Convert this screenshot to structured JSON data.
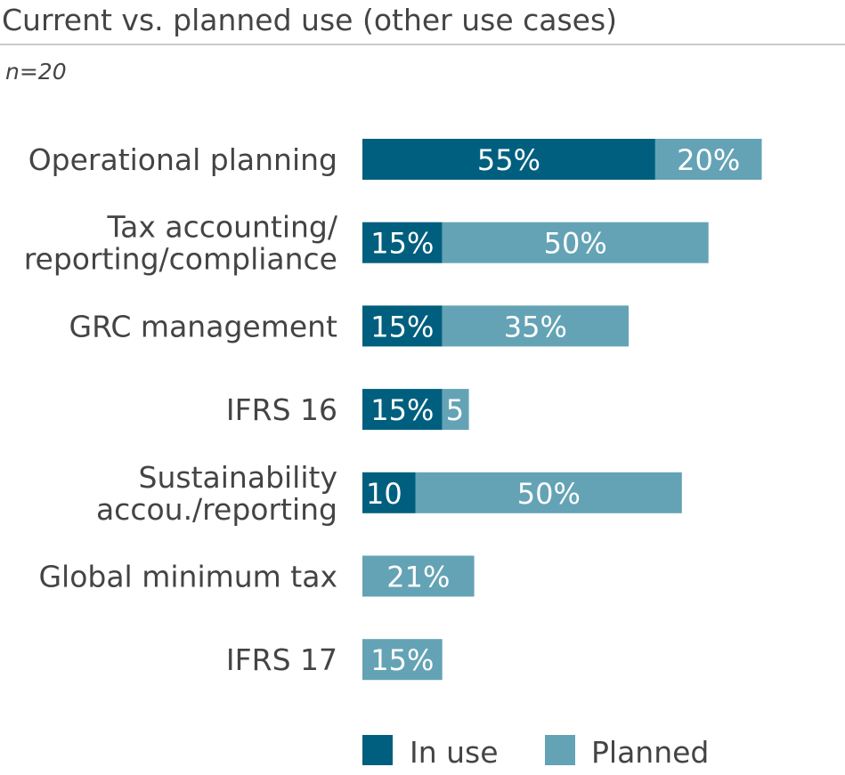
{
  "colors": {
    "in_use": "#005F7E",
    "planned": "#64A3B5",
    "text": "#444444",
    "rule": "#CCCCCC"
  },
  "chart_data": {
    "type": "bar",
    "orientation": "horizontal",
    "stacked": true,
    "title": "Current vs. planned use (other use cases)",
    "subtitle": "n=20",
    "xlabel": "",
    "ylabel": "",
    "unit": "%",
    "categories": [
      [
        "Operational planning"
      ],
      [
        "Tax accounting/",
        "reporting/compliance"
      ],
      [
        "GRC management"
      ],
      [
        "IFRS 16"
      ],
      [
        "Sustainability",
        "accou./reporting"
      ],
      [
        "Global minimum tax"
      ],
      [
        "IFRS 17"
      ]
    ],
    "series": [
      {
        "name": "In use",
        "values": [
          55,
          15,
          15,
          15,
          10,
          0,
          0
        ],
        "labels": [
          "55%",
          "15%",
          "15%",
          "15%",
          "10",
          "",
          ""
        ]
      },
      {
        "name": "Planned",
        "values": [
          20,
          50,
          35,
          5,
          50,
          21,
          15
        ],
        "labels": [
          "20%",
          "50%",
          "35%",
          "5",
          "50%",
          "21%",
          "15%"
        ]
      }
    ],
    "grid": false,
    "legend": "bottom"
  }
}
